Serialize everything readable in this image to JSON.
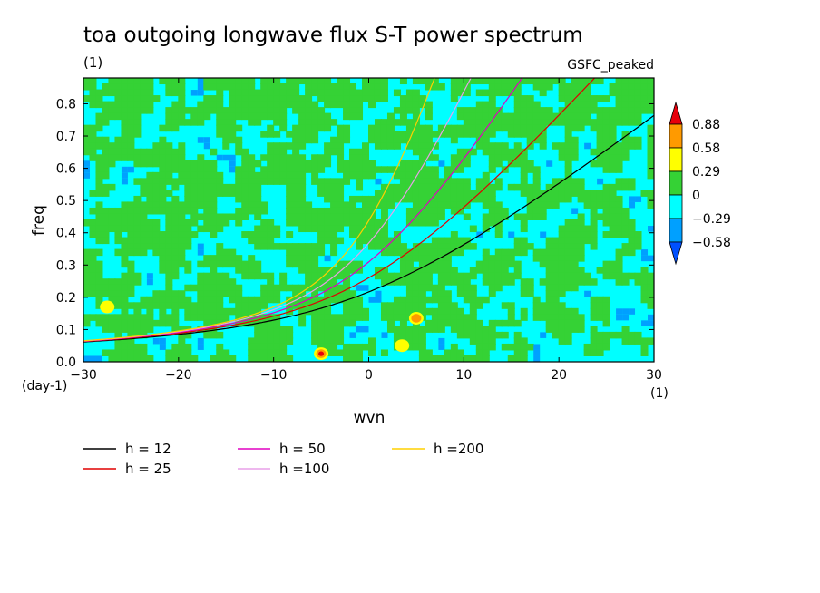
{
  "chart_data": {
    "type": "heatmap",
    "title": "toa outgoing longwave flux S-T power spectrum",
    "units_label": "(1)",
    "source_label": "GSFC_peaked",
    "xlabel": "wvn",
    "ylabel": "freq",
    "x_units": "(1)",
    "y_units": "(day-1)",
    "xlim": [
      -30,
      30
    ],
    "ylim": [
      0,
      0.88
    ],
    "x_ticks": [
      "-30",
      "-20",
      "-10",
      "0",
      "10",
      "20",
      "30"
    ],
    "y_ticks": [
      "0.0",
      "0.1",
      "0.2",
      "0.3",
      "0.4",
      "0.5",
      "0.6",
      "0.7",
      "0.8"
    ],
    "colorbar": {
      "levels": [
        "0.88",
        "0.58",
        "0.29",
        "0",
        "-0.29",
        "-0.58"
      ],
      "colors": [
        "#e8000b",
        "#ff9a00",
        "#ffff00",
        "#35d235",
        "#00ffff",
        "#00a0ff",
        "#0050ff"
      ]
    },
    "field_description": "noisy field mostly between -0.29 and 0.29 with isolated maxima near wvn -5 freq 0.02, wvn 5 freq 0.13, wvn 4 freq 0.05",
    "hotspots": [
      {
        "x": -5,
        "y": 0.025,
        "level": 0.88
      },
      {
        "x": 5,
        "y": 0.135,
        "level": 0.58
      },
      {
        "x": 3.5,
        "y": 0.05,
        "level": 0.29
      },
      {
        "x": -27.5,
        "y": 0.17,
        "level": 0.29
      }
    ],
    "series": [
      {
        "name": "h = 12",
        "color": "#000000",
        "equivalent_depth": 12
      },
      {
        "name": "h = 25",
        "color": "#e00000",
        "equivalent_depth": 25
      },
      {
        "name": "h = 50",
        "color": "#e000c0",
        "equivalent_depth": 50
      },
      {
        "name": "h =100",
        "color": "#e8a0e8",
        "equivalent_depth": 100
      },
      {
        "name": "h =200",
        "color": "#ffd000",
        "equivalent_depth": 200
      }
    ]
  }
}
